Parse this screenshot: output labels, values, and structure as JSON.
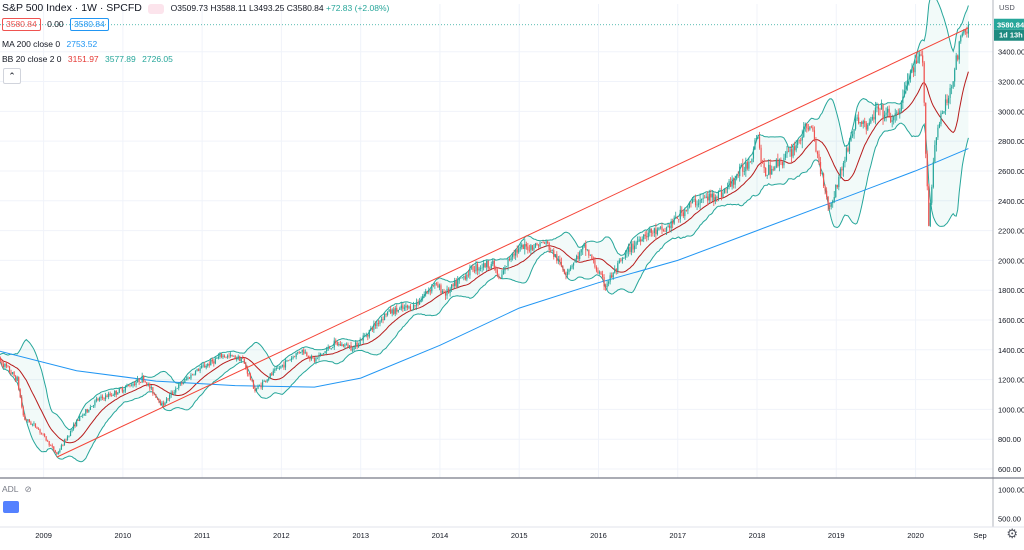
{
  "legend": {
    "symbol": "S&P 500 Index · 1W · SPCFD",
    "open": "O3509.73",
    "high": "H3588.11",
    "low": "L3493.25",
    "close": "C3580.84",
    "change": "+72.83 (+2.08%)",
    "price_red": "3580.84",
    "spread": "0.00",
    "price_blue": "3580.84"
  },
  "indicators": {
    "ma": {
      "name": "MA 200 close 0",
      "value": "2753.52"
    },
    "bb": {
      "name": "BB 20 close 2 0",
      "v1": "3151.97",
      "v2": "3577.89",
      "v3": "2726.05"
    }
  },
  "axis": {
    "currency": "USD",
    "price_label": "3580.84",
    "timer_label": "1d 13h",
    "adl_label": "ADL"
  },
  "colors": {
    "up": "#26a69a",
    "down": "#ef5350",
    "ma": "#2196f3",
    "bb_basis": "#b71c1c",
    "bb_band": "#26a69a",
    "trendline": "#f44336"
  },
  "chart_data": {
    "type": "candlestick",
    "interval": "1W",
    "x_ticks": [
      "2009",
      "2010",
      "2011",
      "2012",
      "2013",
      "2014",
      "2015",
      "2016",
      "2017",
      "2018",
      "2019",
      "2020",
      "Sep"
    ],
    "y_ticks": [
      600,
      800,
      1000,
      1200,
      1400,
      1600,
      1800,
      2000,
      2200,
      2400,
      2600,
      2800,
      3000,
      3200,
      3400
    ],
    "y_range": [
      540,
      3720
    ],
    "adl_ticks": [
      1000,
      500
    ],
    "close_path": [
      [
        "2008-06",
        1350
      ],
      [
        "2008-09",
        1200
      ],
      [
        "2008-10",
        940
      ],
      [
        "2008-12",
        880
      ],
      [
        "2009-03",
        700
      ],
      [
        "2009-06",
        920
      ],
      [
        "2009-09",
        1060
      ],
      [
        "2009-12",
        1115
      ],
      [
        "2010-04",
        1210
      ],
      [
        "2010-07",
        1030
      ],
      [
        "2010-09",
        1140
      ],
      [
        "2010-12",
        1255
      ],
      [
        "2011-04",
        1360
      ],
      [
        "2011-07",
        1345
      ],
      [
        "2011-09",
        1130
      ],
      [
        "2011-12",
        1255
      ],
      [
        "2012-04",
        1400
      ],
      [
        "2012-06",
        1330
      ],
      [
        "2012-09",
        1440
      ],
      [
        "2012-12",
        1420
      ],
      [
        "2013-05",
        1650
      ],
      [
        "2013-09",
        1690
      ],
      [
        "2013-12",
        1840
      ],
      [
        "2014-02",
        1780
      ],
      [
        "2014-06",
        1950
      ],
      [
        "2014-09",
        1980
      ],
      [
        "2014-10",
        1860
      ],
      [
        "2014-12",
        2060
      ],
      [
        "2015-05",
        2120
      ],
      [
        "2015-08",
        1920
      ],
      [
        "2015-11",
        2090
      ],
      [
        "2016-02",
        1830
      ],
      [
        "2016-06",
        2090
      ],
      [
        "2016-08",
        2180
      ],
      [
        "2016-11",
        2200
      ],
      [
        "2017-03",
        2380
      ],
      [
        "2017-08",
        2460
      ],
      [
        "2017-12",
        2680
      ],
      [
        "2018-01",
        2870
      ],
      [
        "2018-02",
        2580
      ],
      [
        "2018-06",
        2720
      ],
      [
        "2018-09",
        2920
      ],
      [
        "2018-12",
        2350
      ],
      [
        "2019-04",
        2940
      ],
      [
        "2019-06",
        2900
      ],
      [
        "2019-07",
        3010
      ],
      [
        "2019-10",
        2940
      ],
      [
        "2019-12",
        3230
      ],
      [
        "2020-02",
        3380
      ],
      [
        "2020-03",
        2240
      ],
      [
        "2020-04",
        2840
      ],
      [
        "2020-06",
        3100
      ],
      [
        "2020-08",
        3500
      ],
      [
        "2020-09",
        3580
      ]
    ],
    "ma200_path": [
      [
        "2008-06",
        1395
      ],
      [
        "2009-06",
        1260
      ],
      [
        "2010-06",
        1190
      ],
      [
        "2011-06",
        1160
      ],
      [
        "2012-06",
        1150
      ],
      [
        "2013-01",
        1210
      ],
      [
        "2014-01",
        1430
      ],
      [
        "2015-01",
        1680
      ],
      [
        "2016-01",
        1850
      ],
      [
        "2017-01",
        2000
      ],
      [
        "2018-01",
        2200
      ],
      [
        "2019-01",
        2400
      ],
      [
        "2020-01",
        2600
      ],
      [
        "2020-09",
        2750
      ]
    ],
    "trendline": [
      [
        "2009-03",
        680
      ],
      [
        "2020-09",
        3560
      ]
    ],
    "last_close": 3580.84
  }
}
